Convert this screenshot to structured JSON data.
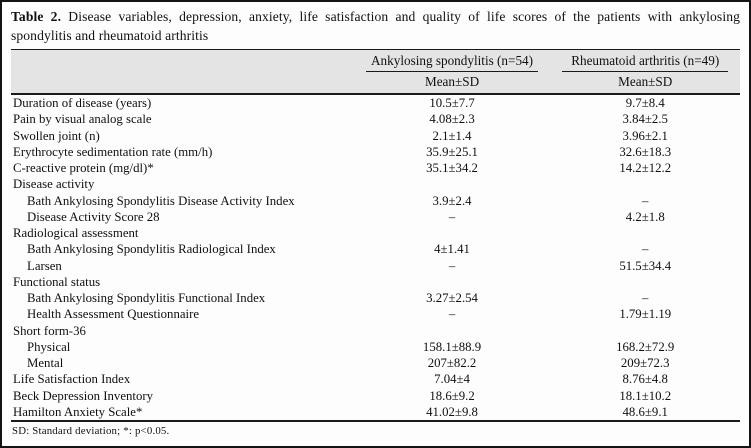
{
  "title": {
    "label": "Table 2.",
    "text": "Disease variables, depression, anxiety, life satisfaction and quality of life scores of the patients with ankylosing spondylitis and rheumatoid arthritis"
  },
  "table": {
    "column_groups": [
      {
        "label": "Ankylosing spondylitis (n=54)",
        "subheader": "Mean±SD"
      },
      {
        "label": "Rheumatoid arthritis (n=49)",
        "subheader": "Mean±SD"
      }
    ],
    "rows": [
      {
        "label": "Duration of disease (years)",
        "as": "10.5±7.7",
        "ra": "9.7±8.4"
      },
      {
        "label": "Pain by visual analog scale",
        "as": "4.08±2.3",
        "ra": "3.84±2.5"
      },
      {
        "label": "Swollen joint (n)",
        "as": "2.1±1.4",
        "ra": "3.96±2.1"
      },
      {
        "label": "Erythrocyte sedimentation rate (mm/h)",
        "as": "35.9±25.1",
        "ra": "32.6±18.3"
      },
      {
        "label": "C-reactive protein (mg/dl)*",
        "as": "35.1±34.2",
        "ra": "14.2±12.2"
      },
      {
        "label": "Disease activity",
        "section": true,
        "as": "",
        "ra": ""
      },
      {
        "label": "Bath Ankylosing Spondylitis Disease Activity Index",
        "indent": true,
        "as": "3.9±2.4",
        "ra": "–"
      },
      {
        "label": "Disease Activity Score 28",
        "indent": true,
        "as": "–",
        "ra": "4.2±1.8"
      },
      {
        "label": "Radiological assessment",
        "section": true,
        "as": "",
        "ra": ""
      },
      {
        "label": "Bath Ankylosing Spondylitis Radiological Index",
        "indent": true,
        "as": "4±1.41",
        "ra": "–"
      },
      {
        "label": "Larsen",
        "indent": true,
        "as": "–",
        "ra": "51.5±34.4"
      },
      {
        "label": "Functional status",
        "section": true,
        "as": "",
        "ra": ""
      },
      {
        "label": "Bath Ankylosing Spondylitis Functional Index",
        "indent": true,
        "as": "3.27±2.54",
        "ra": "–"
      },
      {
        "label": "Health Assessment Questionnaire",
        "indent": true,
        "as": "–",
        "ra": "1.79±1.19"
      },
      {
        "label": "Short form-36",
        "section": true,
        "as": "",
        "ra": ""
      },
      {
        "label": "Physical",
        "indent": true,
        "as": "158.1±88.9",
        "ra": "168.2±72.9"
      },
      {
        "label": "Mental",
        "indent": true,
        "as": "207±82.2",
        "ra": "209±72.3"
      },
      {
        "label": "Life Satisfaction Index",
        "as": "7.04±4",
        "ra": "8.76±4.8"
      },
      {
        "label": "Beck Depression Inventory",
        "as": "18.6±9.2",
        "ra": "18.1±10.2"
      },
      {
        "label": "Hamilton Anxiety Scale*",
        "as": "41.02±9.8",
        "ra": "48.6±9.1"
      }
    ]
  },
  "footnote": "SD: Standard deviation; *: p<0.05.",
  "colors": {
    "header_bg": "#e4e4e4",
    "border": "#141414",
    "rule": "#1a1a1a"
  }
}
